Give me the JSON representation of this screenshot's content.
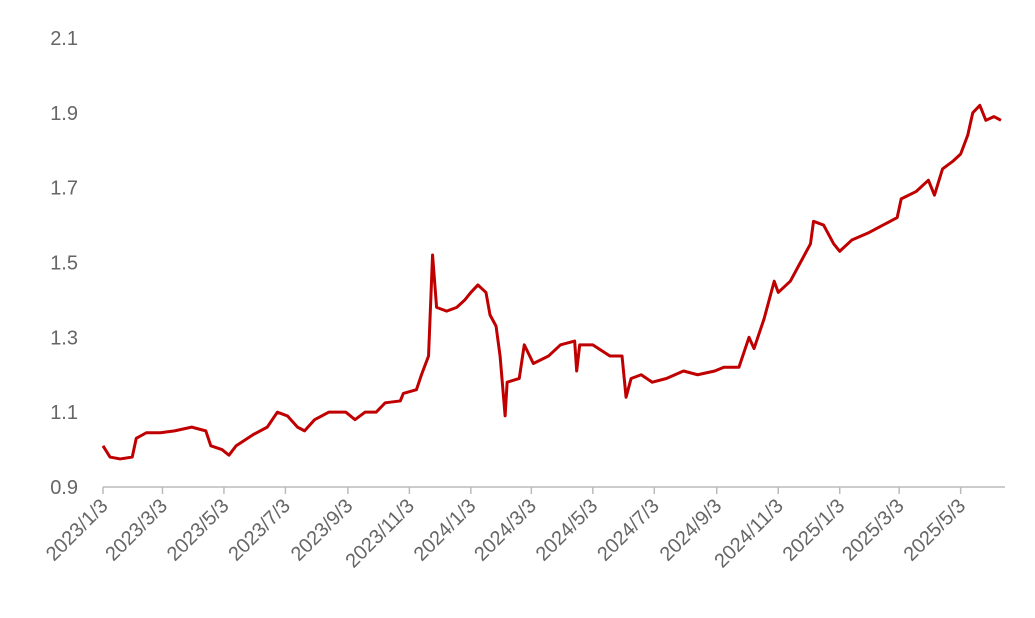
{
  "chart_data": {
    "type": "line",
    "x": [
      "2023/1/3",
      "2023/1/10",
      "2023/1/20",
      "2023/2/1",
      "2023/2/5",
      "2023/2/15",
      "2023/3/1",
      "2023/3/15",
      "2023/4/1",
      "2023/4/15",
      "2023/4/20",
      "2023/5/1",
      "2023/5/8",
      "2023/5/15",
      "2023/6/1",
      "2023/6/15",
      "2023/6/25",
      "2023/7/5",
      "2023/7/15",
      "2023/7/22",
      "2023/8/1",
      "2023/8/15",
      "2023/9/1",
      "2023/9/10",
      "2023/9/20",
      "2023/10/1",
      "2023/10/10",
      "2023/10/25",
      "2023/10/28",
      "2023/11/10",
      "2023/11/15",
      "2023/11/22",
      "2023/11/26",
      "2023/11/30",
      "2023/12/10",
      "2023/12/20",
      "2023/12/28",
      "2024/1/3",
      "2024/1/10",
      "2024/1/18",
      "2024/1/22",
      "2024/1/28",
      "2024/2/1",
      "2024/2/6",
      "2024/2/8",
      "2024/2/20",
      "2024/2/25",
      "2024/3/5",
      "2024/3/20",
      "2024/4/1",
      "2024/4/15",
      "2024/4/17",
      "2024/4/20",
      "2024/5/3",
      "2024/5/20",
      "2024/6/1",
      "2024/6/5",
      "2024/6/10",
      "2024/6/20",
      "2024/7/1",
      "2024/7/15",
      "2024/8/1",
      "2024/8/15",
      "2024/9/1",
      "2024/9/10",
      "2024/9/25",
      "2024/10/5",
      "2024/10/10",
      "2024/10/20",
      "2024/10/30",
      "2024/11/3",
      "2024/11/15",
      "2024/11/25",
      "2024/12/5",
      "2024/12/8",
      "2024/12/18",
      "2024/12/28",
      "2025/1/3",
      "2025/1/15",
      "2025/2/1",
      "2025/2/15",
      "2025/3/1",
      "2025/3/5",
      "2025/3/20",
      "2025/4/1",
      "2025/4/7",
      "2025/4/15",
      "2025/4/25",
      "2025/5/3",
      "2025/5/10",
      "2025/5/15",
      "2025/5/22",
      "2025/5/28",
      "2025/6/5",
      "2025/6/12"
    ],
    "series": [
      {
        "color": "#c00000",
        "values": [
          1.01,
          0.98,
          0.975,
          0.98,
          1.03,
          1.045,
          1.045,
          1.05,
          1.06,
          1.05,
          1.01,
          1.0,
          0.985,
          1.01,
          1.04,
          1.06,
          1.1,
          1.09,
          1.06,
          1.05,
          1.08,
          1.1,
          1.1,
          1.08,
          1.1,
          1.1,
          1.125,
          1.13,
          1.15,
          1.16,
          1.2,
          1.25,
          1.52,
          1.38,
          1.37,
          1.38,
          1.4,
          1.42,
          1.44,
          1.42,
          1.36,
          1.33,
          1.25,
          1.09,
          1.18,
          1.19,
          1.28,
          1.23,
          1.25,
          1.28,
          1.29,
          1.21,
          1.28,
          1.28,
          1.25,
          1.25,
          1.14,
          1.19,
          1.2,
          1.18,
          1.19,
          1.21,
          1.2,
          1.21,
          1.22,
          1.22,
          1.3,
          1.27,
          1.35,
          1.45,
          1.42,
          1.45,
          1.5,
          1.55,
          1.61,
          1.6,
          1.55,
          1.53,
          1.56,
          1.58,
          1.6,
          1.62,
          1.67,
          1.69,
          1.72,
          1.68,
          1.75,
          1.77,
          1.79,
          1.84,
          1.9,
          1.92,
          1.88,
          1.89,
          1.88
        ]
      }
    ],
    "xlim": [
      "2023/1/3",
      "2025/6/16"
    ],
    "xticks": [
      "2023/1/3",
      "2023/3/3",
      "2023/5/3",
      "2023/7/3",
      "2023/9/3",
      "2023/11/3",
      "2024/1/3",
      "2024/3/3",
      "2024/5/3",
      "2024/7/3",
      "2024/9/3",
      "2024/11/3",
      "2025/1/3",
      "2025/3/3",
      "2025/5/3"
    ],
    "ylim": [
      0.9,
      2.1
    ],
    "yticks": [
      0.9,
      1.1,
      1.3,
      1.5,
      1.7,
      1.9,
      2.1
    ],
    "grid": false
  }
}
